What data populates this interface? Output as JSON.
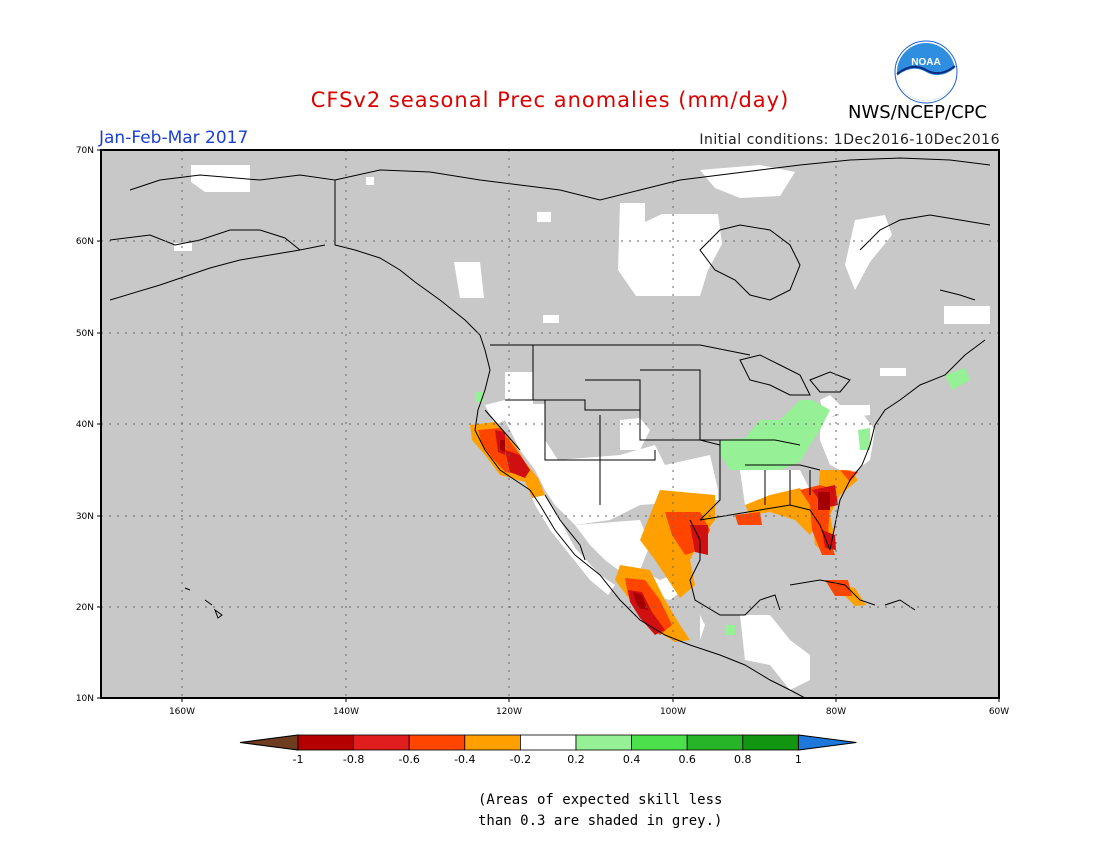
{
  "header": {
    "title": "CFSv2 seasonal Prec anomalies (mm/day)",
    "period": "Jan-Feb-Mar 2017",
    "initial_conditions": "Initial conditions: 1Dec2016-10Dec2016",
    "agency": "NWS/NCEP/CPC",
    "logo_text": "NOAA"
  },
  "map": {
    "lat_labels": [
      "70N",
      "60N",
      "50N",
      "40N",
      "30N",
      "20N",
      "10N"
    ],
    "lon_labels": [
      "160W",
      "140W",
      "120W",
      "100W",
      "80W",
      "60W"
    ],
    "colors": {
      "grey_mask": "#c8c8c8",
      "neutral": "#ffffff",
      "dark_red": "#a50000",
      "red": "#e01e1e",
      "orange_red": "#ff4500",
      "orange": "#ffa000",
      "light_green": "#96f096",
      "green": "#4ce04c",
      "dark_green": "#1eb41e"
    }
  },
  "colorbar": {
    "labels": [
      "-1",
      "-0.8",
      "-0.6",
      "-0.4",
      "-0.2",
      "0.2",
      "0.4",
      "0.6",
      "0.8",
      "1"
    ],
    "colors": [
      "#6e3c1e",
      "#b40000",
      "#e01e1e",
      "#ff4500",
      "#ffa000",
      "#ffffff",
      "#96f096",
      "#4ce04c",
      "#28b428",
      "#129612",
      "#1e78dc"
    ]
  },
  "note": {
    "line1": "(Areas of expected skill less",
    "line2": "than 0.3 are shaded in grey.)"
  }
}
